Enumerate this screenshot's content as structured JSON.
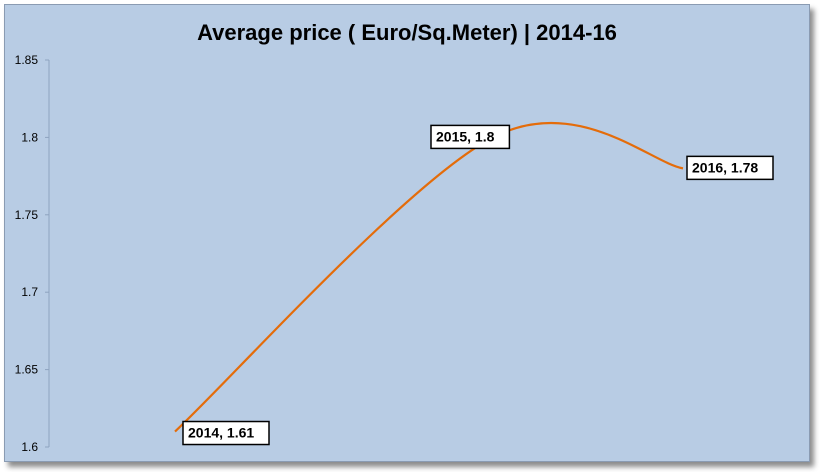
{
  "chart_data": {
    "type": "line",
    "title": "Average price ( Euro/Sq.Meter) | 2014-16",
    "xlabel": "",
    "ylabel": "",
    "x": [
      "2014",
      "2015",
      "2016"
    ],
    "values": [
      1.61,
      1.8,
      1.78
    ],
    "data_labels": [
      "2014, 1.61",
      "2015, 1.8",
      "2016, 1.78"
    ],
    "yticks": [
      "1.85",
      "1.8",
      "1.75",
      "1.7",
      "1.65",
      "1.6"
    ],
    "ytick_values": [
      1.85,
      1.8,
      1.75,
      1.7,
      1.65,
      1.6
    ],
    "ylim": [
      1.6,
      1.85
    ],
    "smooth": true,
    "grid": false,
    "legend": "none",
    "line_color": "#e46c0a",
    "background_color": "#b8cce4"
  }
}
